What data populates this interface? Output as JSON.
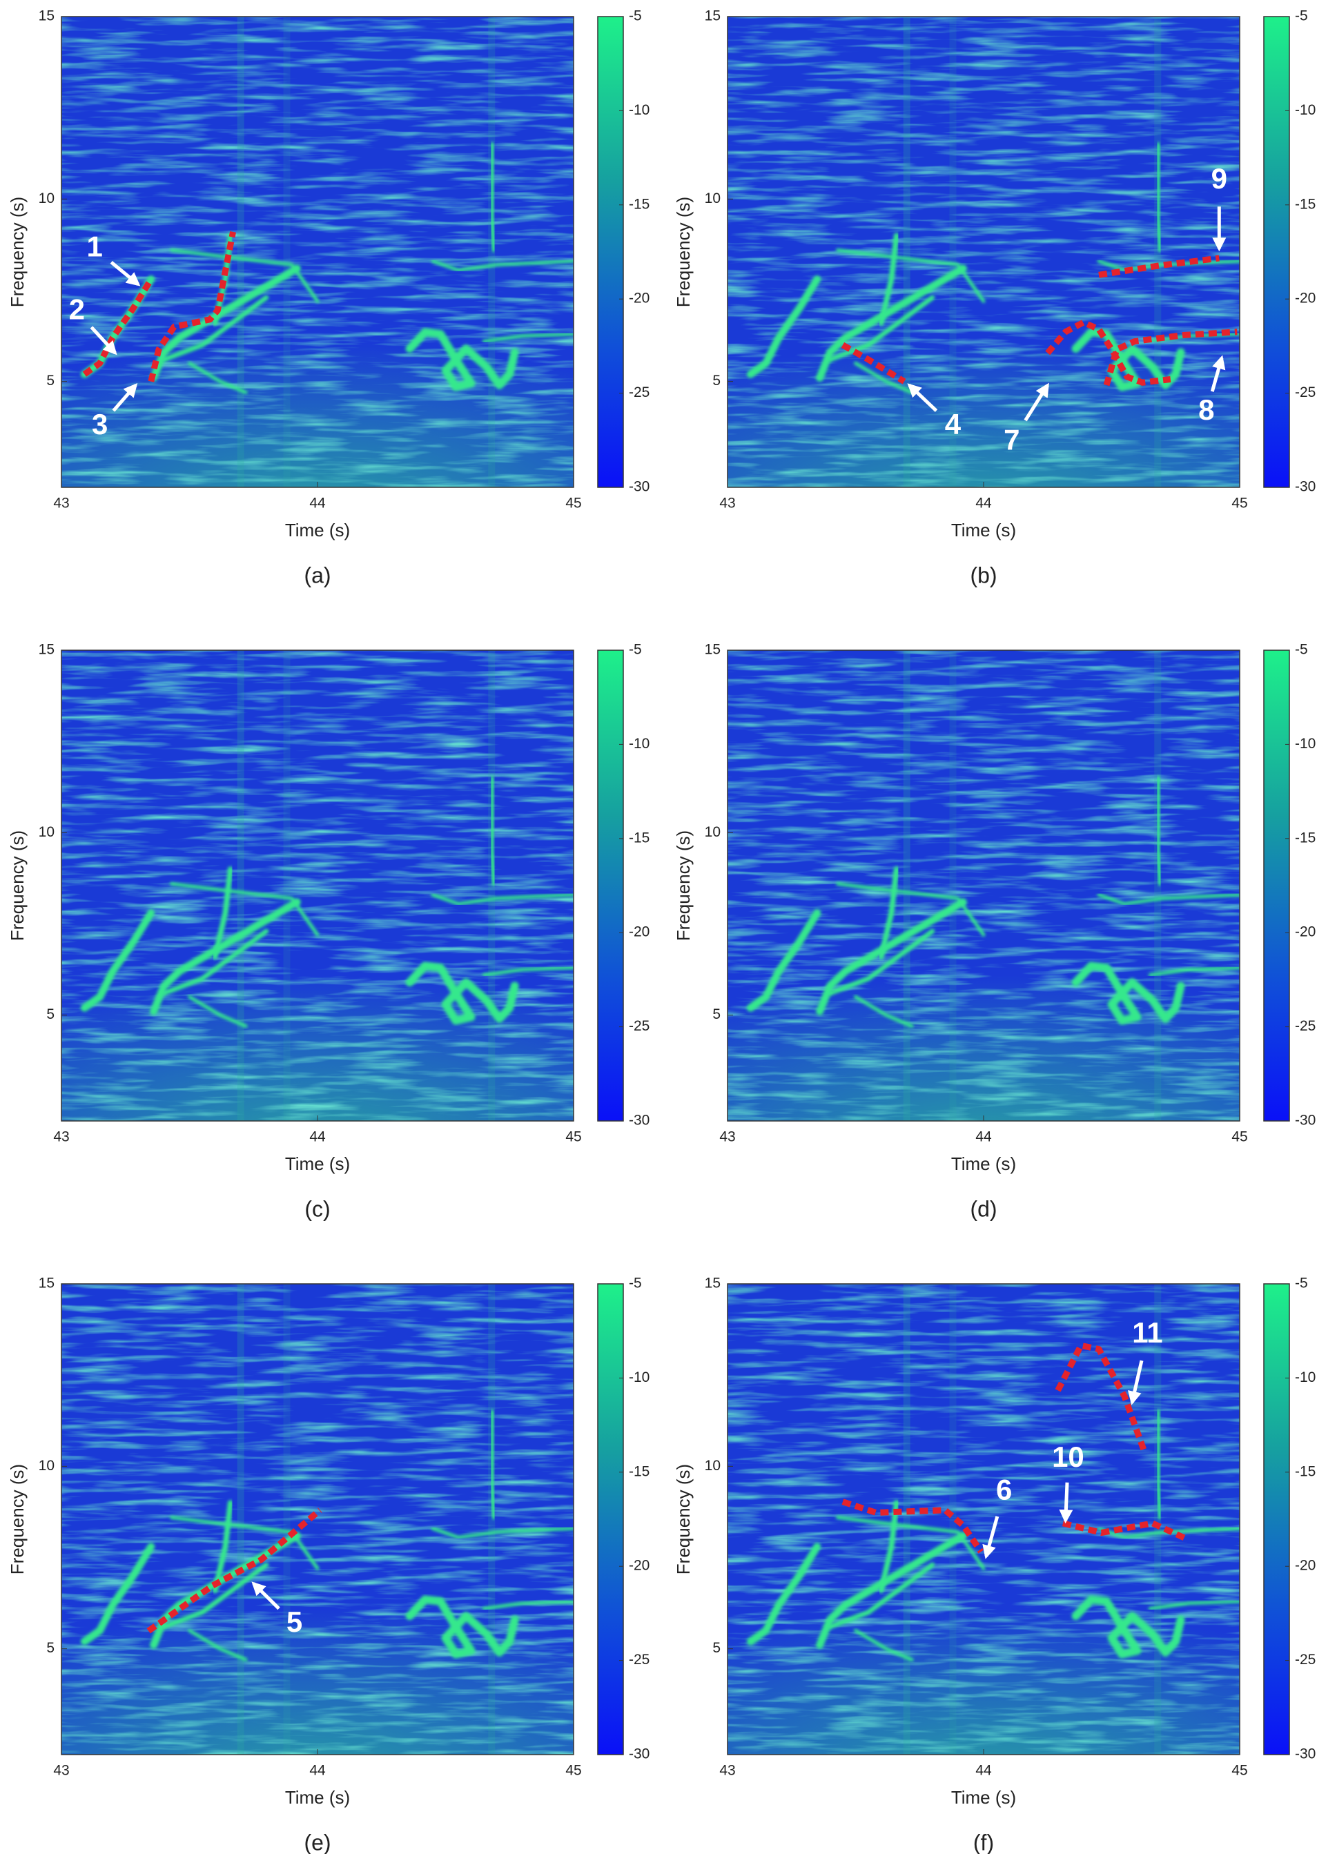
{
  "chart_data": [
    {
      "type": "spectrogram",
      "caption": "(a)",
      "xlabel": "Time (s)",
      "ylabel": "Frequency (s)",
      "xlim": [
        43,
        45
      ],
      "ylim": [
        2.1,
        15
      ],
      "xticks": [
        43,
        44,
        45
      ],
      "yticks": [
        5,
        10,
        15
      ],
      "colorbar": {
        "lim": [
          -30,
          -5
        ],
        "ticks": [
          -5,
          -10,
          -15,
          -20,
          -25,
          -30
        ]
      },
      "traces": [
        {
          "x": [
            43.09,
            43.15,
            43.2,
            43.28,
            43.35
          ],
          "y": [
            5.2,
            5.5,
            6.2,
            7.0,
            7.8
          ]
        },
        {
          "x": [
            43.35,
            43.38,
            43.44,
            43.58,
            43.61,
            43.67
          ],
          "y": [
            5.0,
            5.88,
            6.5,
            6.7,
            6.95,
            9.1
          ]
        }
      ],
      "annotations": [
        {
          "label": "1"
        },
        {
          "label": "2"
        },
        {
          "label": "3"
        }
      ]
    },
    {
      "type": "spectrogram",
      "caption": "(b)",
      "xlabel": "Time (s)",
      "ylabel": "Frequency (s)",
      "xlim": [
        43,
        45
      ],
      "ylim": [
        2.1,
        15
      ],
      "xticks": [
        43,
        44,
        45
      ],
      "yticks": [
        5,
        10,
        15
      ],
      "colorbar": {
        "lim": [
          -30,
          -5
        ],
        "ticks": [
          -5,
          -10,
          -15,
          -20,
          -25,
          -30
        ]
      },
      "traces": [
        {
          "x": [
            43.45,
            43.55,
            43.69
          ],
          "y": [
            6.0,
            5.6,
            5.0
          ]
        },
        {
          "x": [
            44.25,
            44.32,
            44.39,
            44.45,
            44.5,
            44.56,
            44.62,
            44.73
          ],
          "y": [
            5.78,
            6.36,
            6.62,
            6.43,
            5.88,
            5.13,
            4.97,
            5.06
          ]
        },
        {
          "x": [
            44.48,
            44.52,
            44.59,
            44.78,
            44.99
          ],
          "y": [
            4.9,
            5.88,
            6.1,
            6.27,
            6.36
          ]
        },
        {
          "x": [
            44.45,
            44.69,
            44.92
          ],
          "y": [
            7.92,
            8.18,
            8.38
          ]
        }
      ],
      "annotations": [
        {
          "label": "4"
        },
        {
          "label": "7"
        },
        {
          "label": "8"
        },
        {
          "label": "9"
        }
      ]
    },
    {
      "type": "spectrogram",
      "caption": "(c)",
      "xlabel": "Time (s)",
      "ylabel": "Frequency (s)",
      "xlim": [
        43,
        45
      ],
      "ylim": [
        2.1,
        15
      ],
      "xticks": [
        43,
        44,
        45
      ],
      "yticks": [
        5,
        10,
        15
      ],
      "colorbar": {
        "lim": [
          -30,
          -5
        ],
        "ticks": [
          -5,
          -10,
          -15,
          -20,
          -25,
          -30
        ]
      },
      "traces": [],
      "annotations": []
    },
    {
      "type": "spectrogram",
      "caption": "(d)",
      "xlabel": "Time (s)",
      "ylabel": "Frequency (s)",
      "xlim": [
        43,
        45
      ],
      "ylim": [
        2.1,
        15
      ],
      "xticks": [
        43,
        44,
        45
      ],
      "yticks": [
        5,
        10,
        15
      ],
      "colorbar": {
        "lim": [
          -30,
          -5
        ],
        "ticks": [
          -5,
          -10,
          -15,
          -20,
          -25,
          -30
        ]
      },
      "traces": [],
      "annotations": []
    },
    {
      "type": "spectrogram",
      "caption": "(e)",
      "xlabel": "Time (s)",
      "ylabel": "Frequency (s)",
      "xlim": [
        43,
        45
      ],
      "ylim": [
        2.1,
        15
      ],
      "xticks": [
        43,
        44,
        45
      ],
      "yticks": [
        5,
        10,
        15
      ],
      "colorbar": {
        "lim": [
          -30,
          -5
        ],
        "ticks": [
          -5,
          -10,
          -15,
          -20,
          -25,
          -30
        ]
      },
      "traces": [
        {
          "x": [
            43.34,
            43.59,
            43.78,
            44.01
          ],
          "y": [
            5.49,
            6.73,
            7.44,
            8.8
          ]
        }
      ],
      "annotations": [
        {
          "label": "5"
        }
      ]
    },
    {
      "type": "spectrogram",
      "caption": "(f)",
      "xlabel": "Time (s)",
      "ylabel": "Frequency (s)",
      "xlim": [
        43,
        45
      ],
      "ylim": [
        2.1,
        15
      ],
      "xticks": [
        43,
        44,
        45
      ],
      "yticks": [
        5,
        10,
        15
      ],
      "colorbar": {
        "lim": [
          -30,
          -5
        ],
        "ticks": [
          -5,
          -10,
          -15,
          -20,
          -25,
          -30
        ]
      },
      "traces": [
        {
          "x": [
            43.45,
            43.58,
            43.85,
            43.92,
            43.99
          ],
          "y": [
            9.03,
            8.73,
            8.8,
            8.38,
            7.66
          ]
        },
        {
          "x": [
            44.31,
            44.46,
            44.66,
            44.79
          ],
          "y": [
            8.44,
            8.18,
            8.44,
            8.02
          ]
        },
        {
          "x": [
            44.29,
            44.38,
            44.45,
            44.55,
            44.63
          ],
          "y": [
            12.08,
            13.31,
            13.21,
            11.92,
            10.36
          ]
        }
      ],
      "annotations": [
        {
          "label": "6"
        },
        {
          "label": "10"
        },
        {
          "label": "11"
        }
      ]
    }
  ]
}
